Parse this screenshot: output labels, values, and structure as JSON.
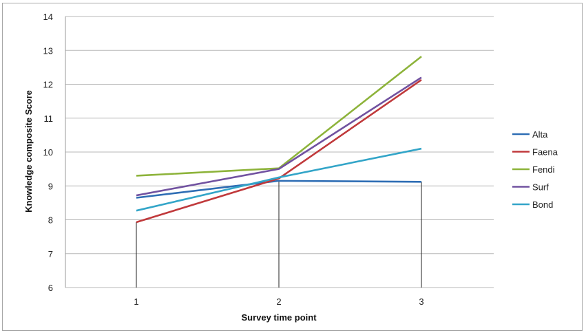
{
  "chart_data": {
    "type": "line",
    "title": "",
    "xlabel": "Survey time point",
    "ylabel": "Knowledge composite Score",
    "x": [
      1,
      2,
      3
    ],
    "x_tick_labels": [
      "1",
      "2",
      "3"
    ],
    "ylim": [
      6,
      14
    ],
    "y_ticks": [
      6,
      7,
      8,
      9,
      10,
      11,
      12,
      13,
      14
    ],
    "grid": "horizontal",
    "legend_position": "right",
    "series": [
      {
        "name": "Alta",
        "color": "#2e6db4",
        "values": [
          8.65,
          9.15,
          9.12
        ]
      },
      {
        "name": "Faena",
        "color": "#c0393b",
        "values": [
          7.93,
          9.22,
          12.13
        ]
      },
      {
        "name": "Fendi",
        "color": "#8db33a",
        "values": [
          9.3,
          9.52,
          12.82
        ]
      },
      {
        "name": "Surf",
        "color": "#7152a0",
        "values": [
          8.72,
          9.5,
          12.2
        ]
      },
      {
        "name": "Bond",
        "color": "#33a5c8",
        "values": [
          8.27,
          9.25,
          10.1
        ]
      }
    ]
  }
}
